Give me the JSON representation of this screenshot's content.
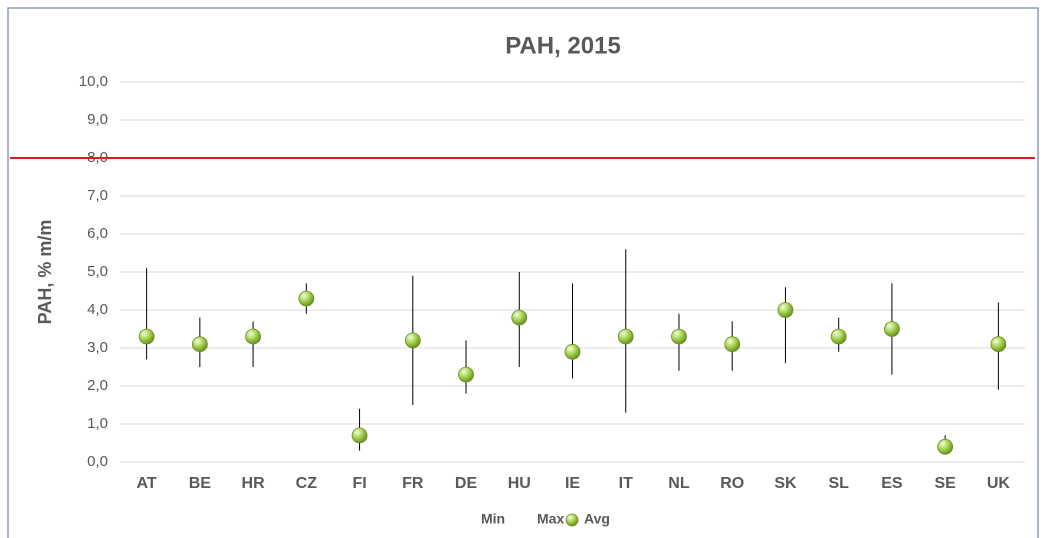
{
  "chart_data": {
    "type": "range_dot",
    "title": "PAH, 2015",
    "y_label": "PAH, % m/m",
    "categories": [
      "AT",
      "BE",
      "HR",
      "CZ",
      "FI",
      "FR",
      "DE",
      "HU",
      "IE",
      "IT",
      "NL",
      "RO",
      "SK",
      "SL",
      "ES",
      "SE",
      "UK"
    ],
    "series": [
      {
        "name": "Min",
        "color": "#000000",
        "values": [
          2.7,
          2.5,
          2.5,
          3.9,
          0.3,
          1.5,
          1.8,
          2.5,
          2.2,
          1.3,
          2.4,
          2.4,
          2.6,
          2.9,
          2.3,
          0.3,
          1.9
        ]
      },
      {
        "name": "Max",
        "color": "#000000",
        "values": [
          5.1,
          3.8,
          3.7,
          4.7,
          1.4,
          4.9,
          3.2,
          5.0,
          4.7,
          5.6,
          3.9,
          3.7,
          4.6,
          3.8,
          4.7,
          0.7,
          4.2
        ]
      },
      {
        "name": "Avg",
        "color": "#92c43c",
        "values": [
          3.3,
          3.1,
          3.3,
          4.3,
          0.7,
          3.2,
          2.3,
          3.8,
          2.9,
          3.3,
          3.3,
          3.1,
          4.0,
          3.3,
          3.5,
          0.4,
          3.1
        ]
      }
    ],
    "limit": 8,
    "limit_color": "#e31a1c",
    "ylim": [
      0,
      10
    ],
    "yticks": [
      {
        "value": 0,
        "label": "0,0"
      },
      {
        "value": 1,
        "label": "1,0"
      },
      {
        "value": 2,
        "label": "2,0"
      },
      {
        "value": 3,
        "label": "3,0"
      },
      {
        "value": 4,
        "label": "4,0"
      },
      {
        "value": 5,
        "label": "5,0"
      },
      {
        "value": 6,
        "label": "6,0"
      },
      {
        "value": 7,
        "label": "7,0"
      },
      {
        "value": 8,
        "label": "8,0"
      },
      {
        "value": 9,
        "label": "9,0"
      },
      {
        "value": 10,
        "label": "10,0"
      }
    ],
    "grid": true,
    "legend": "bottom"
  }
}
